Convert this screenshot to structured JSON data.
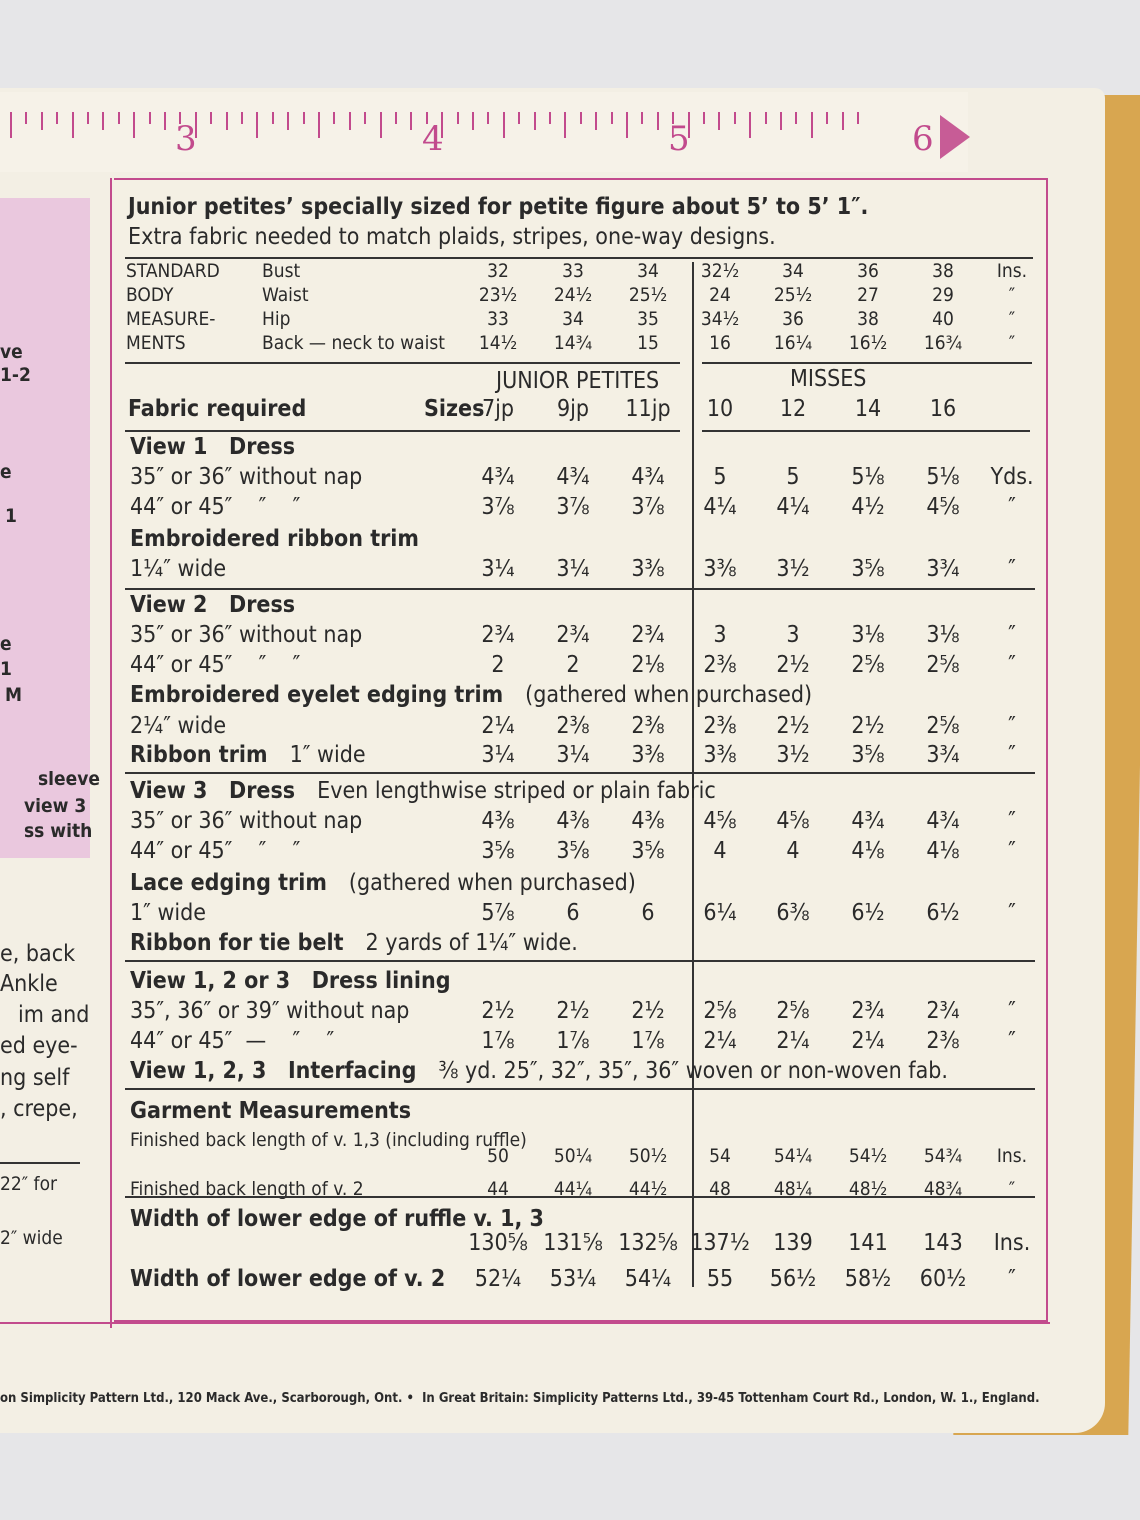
{
  "ruler": {
    "numbers": [
      "3",
      "4",
      "5",
      "6"
    ]
  },
  "left_panel": {
    "fragments": [
      "ve",
      "1-2",
      "e",
      "1",
      "e",
      "1",
      "M",
      "sleeve",
      "view 3",
      "ss with",
      "e, back",
      "Ankle",
      "im and",
      "ed eye-",
      "ng self",
      ", crepe,",
      "22″ for",
      "2″ wide"
    ]
  },
  "header": {
    "title": "Junior petites’ specially sized for petite figure about 5’ to 5’ 1″.",
    "subtitle": "Extra fabric needed to match plaids, stripes, one-way designs."
  },
  "measurements": {
    "side_label": [
      "STANDARD",
      "BODY",
      "MEASURE-",
      "MENTS"
    ],
    "rows": [
      {
        "label": "Bust",
        "values": [
          "32",
          "33",
          "34",
          "32½",
          "34",
          "36",
          "38"
        ],
        "unit": "Ins."
      },
      {
        "label": "Waist",
        "values": [
          "23½",
          "24½",
          "25½",
          "24",
          "25½",
          "27",
          "29"
        ],
        "unit": "″"
      },
      {
        "label": "Hip",
        "values": [
          "33",
          "34",
          "35",
          "34½",
          "36",
          "38",
          "40"
        ],
        "unit": "″"
      },
      {
        "label": "Back — neck to waist",
        "values": [
          "14½",
          "14¾",
          "15",
          "16",
          "16¼",
          "16½",
          "16¾"
        ],
        "unit": "″"
      }
    ]
  },
  "table": {
    "group_headers": [
      "JUNIOR PETITES",
      "MISSES"
    ],
    "fabric_label": "Fabric required",
    "sizes_label": "Sizes",
    "sizes": [
      "7jp",
      "9jp",
      "11jp",
      "10",
      "12",
      "14",
      "16"
    ],
    "rows": [
      {
        "heading": "View 1   Dress"
      },
      {
        "label": "35″ or 36″ without nap",
        "values": [
          "4¾",
          "4¾",
          "4¾",
          "5",
          "5",
          "5⅛",
          "5⅛"
        ],
        "unit": "Yds."
      },
      {
        "label": "44″ or 45″    ″    ″",
        "values": [
          "3⅞",
          "3⅞",
          "3⅞",
          "4¼",
          "4¼",
          "4½",
          "4⅝"
        ],
        "unit": "″"
      },
      {
        "heading": "Embroidered ribbon trim"
      },
      {
        "label": "1¼″ wide",
        "values": [
          "3¼",
          "3¼",
          "3⅜",
          "3⅜",
          "3½",
          "3⅝",
          "3¾"
        ],
        "unit": "″"
      },
      {
        "heading": "View 2   Dress"
      },
      {
        "label": "35″ or 36″ without nap",
        "values": [
          "2¾",
          "2¾",
          "2¾",
          "3",
          "3",
          "3⅛",
          "3⅛"
        ],
        "unit": "″"
      },
      {
        "label": "44″ or 45″    ″    ″",
        "values": [
          "2",
          "2",
          "2⅛",
          "2⅜",
          "2½",
          "2⅝",
          "2⅝"
        ],
        "unit": "″"
      },
      {
        "heading": "Embroidered eyelet edging trim",
        "note": "(gathered when purchased)"
      },
      {
        "label": "2¼″ wide",
        "values": [
          "2¼",
          "2⅜",
          "2⅜",
          "2⅜",
          "2½",
          "2½",
          "2⅝"
        ],
        "unit": "″"
      },
      {
        "heading": "Ribbon trim",
        "note": "1″ wide",
        "values": [
          "3¼",
          "3¼",
          "3⅜",
          "3⅜",
          "3½",
          "3⅝",
          "3¾"
        ],
        "unit": "″"
      },
      {
        "heading": "View 3   Dress",
        "note": "Even lengthwise striped or plain fabric"
      },
      {
        "label": "35″ or 36″ without nap",
        "values": [
          "4⅜",
          "4⅜",
          "4⅜",
          "4⅝",
          "4⅝",
          "4¾",
          "4¾"
        ],
        "unit": "″"
      },
      {
        "label": "44″ or 45″    ″    ″",
        "values": [
          "3⅝",
          "3⅝",
          "3⅝",
          "4",
          "4",
          "4⅛",
          "4⅛"
        ],
        "unit": "″"
      },
      {
        "heading": "Lace edging trim",
        "note": "(gathered when purchased)"
      },
      {
        "label": "1″ wide",
        "values": [
          "5⅞",
          "6",
          "6",
          "6¼",
          "6⅜",
          "6½",
          "6½"
        ],
        "unit": "″"
      },
      {
        "heading": "Ribbon for tie belt",
        "note": "2 yards of 1¼″ wide."
      },
      {
        "heading": "View 1, 2 or 3   Dress lining"
      },
      {
        "label": "35″, 36″ or 39″ without nap",
        "values": [
          "2½",
          "2½",
          "2½",
          "2⅝",
          "2⅝",
          "2¾",
          "2¾"
        ],
        "unit": "″"
      },
      {
        "label": "44″ or 45″  —    ″    ″",
        "values": [
          "1⅞",
          "1⅞",
          "1⅞",
          "2¼",
          "2¼",
          "2¼",
          "2⅜"
        ],
        "unit": "″"
      },
      {
        "heading": "View 1, 2, 3   Interfacing",
        "note": "⅜ yd. 25″, 32″, 35″, 36″ woven or non-woven fab."
      },
      {
        "heading": "Garment Measurements"
      },
      {
        "label": "Finished back length of v. 1,3 (including ruffle)"
      },
      {
        "values": [
          "50",
          "50¼",
          "50½",
          "54",
          "54¼",
          "54½",
          "54¾"
        ],
        "unit": "Ins."
      },
      {
        "label": "Finished back length of v. 2",
        "values": [
          "44",
          "44¼",
          "44½",
          "48",
          "48¼",
          "48½",
          "48¾"
        ],
        "unit": "″"
      },
      {
        "heading": "Width of lower edge of ruffle v. 1, 3"
      },
      {
        "values": [
          "130⅝",
          "131⅝",
          "132⅝",
          "137½",
          "139",
          "141",
          "143"
        ],
        "unit": "Ins."
      },
      {
        "heading": "Width of lower edge of v. 2",
        "values": [
          "52¼",
          "53¼",
          "54¼",
          "55",
          "56½",
          "58½",
          "60½"
        ],
        "unit": "″"
      }
    ]
  },
  "footer": "on Simplicity Pattern Ltd., 120 Mack Ave., Scarborough, Ont. •  In Great Britain: Simplicity Patterns Ltd., 39-45 Tottenham Court Rd., London, W. 1., England."
}
